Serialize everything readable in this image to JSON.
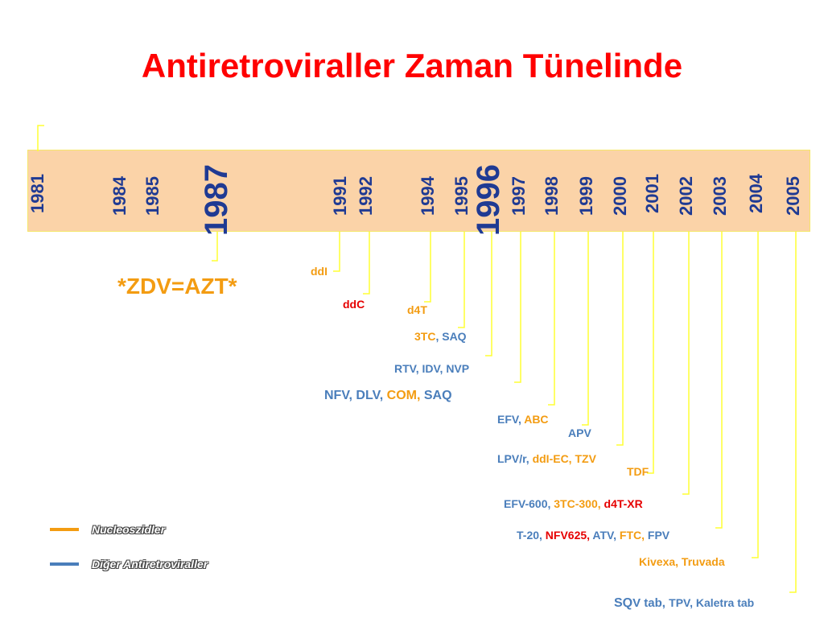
{
  "title": "Antiretroviraller Zaman Tünelinde",
  "colors": {
    "title": "#ff0000",
    "band": "#fbd3a8",
    "year": "#1f3a93",
    "connector": "#ffff33",
    "nucleoside": "#f39c12",
    "other": "#4a7ebb",
    "highlight": "#e60000"
  },
  "years": {
    "y1981": "1981",
    "y1984": "1984",
    "y1985": "1985",
    "y1987": "1987",
    "y1991": "1991",
    "y1992": "1992",
    "y1994": "1994",
    "y1995": "1995",
    "y1996": "1996",
    "y1997": "1997",
    "y1998": "1998",
    "y1999": "1999",
    "y2000": "2000",
    "y2001": "2001",
    "y2002": "2002",
    "y2003": "2003",
    "y2004": "2004",
    "y2005": "2005"
  },
  "zdv_note": "*ZDV=AZT*",
  "events": {
    "ddi": "ddI",
    "ddc": "ddC",
    "d4t": "d4T",
    "e1995": {
      "a": "3TC",
      "b": ", SAQ"
    },
    "e1996": "RTV, IDV, NVP",
    "e1997": {
      "a": "NFV, DLV, ",
      "b": "COM, ",
      "c": "SAQ"
    },
    "e1998": {
      "a": "EFV, ",
      "b": "ABC"
    },
    "apv": "APV",
    "e2000": {
      "a": "LPV/r, ",
      "b": "ddI-EC, TZV"
    },
    "tdf": "TDF",
    "e2002": {
      "a": "EFV-600, ",
      "b": "3TC-300, ",
      "c": "d4T-XR"
    },
    "e2003": {
      "a": "T-20, ",
      "b": "NFV625, ",
      "c": "ATV, ",
      "d": "FTC, ",
      "e": "FPV"
    },
    "e2004": "Kivexa, Truvada",
    "e2005": {
      "a": "SQ",
      "b": "V tab, ",
      "c": "TPV, Kaletra tab"
    }
  },
  "legend": {
    "nucleoside": "Nucleoszidler",
    "other": "Diğer Antiretroviraller"
  }
}
